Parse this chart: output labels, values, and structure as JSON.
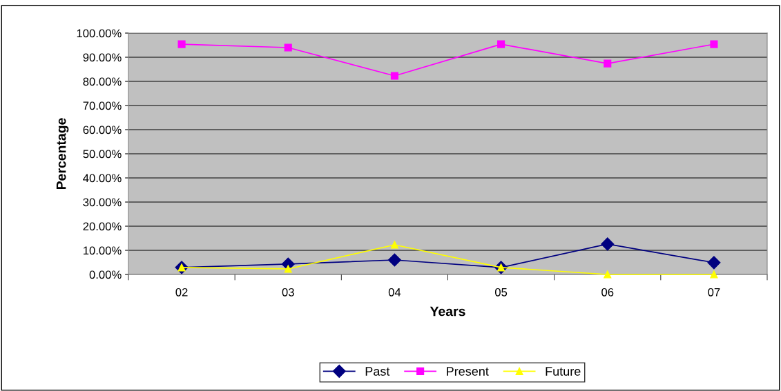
{
  "chart_data": {
    "type": "line",
    "xlabel": "Years",
    "ylabel": "Percentage",
    "categories": [
      "02",
      "03",
      "04",
      "05",
      "06",
      "07"
    ],
    "series": [
      {
        "name": "Past",
        "color": "#000080",
        "marker": "diamond",
        "values": [
          2.9,
          4.3,
          6.0,
          2.9,
          12.6,
          4.9
        ]
      },
      {
        "name": "Present",
        "color": "#ff00ff",
        "marker": "square",
        "values": [
          95.4,
          94.0,
          82.3,
          95.4,
          87.4,
          95.4
        ]
      },
      {
        "name": "Future",
        "color": "#ffff00",
        "marker": "triangle",
        "values": [
          2.9,
          2.3,
          12.3,
          2.9,
          0,
          0
        ]
      }
    ],
    "ylim": [
      0,
      100
    ],
    "yticks": [
      {
        "value": 0,
        "label": "0.00%"
      },
      {
        "value": 10,
        "label": "10.00%"
      },
      {
        "value": 20,
        "label": "20.00%"
      },
      {
        "value": 30,
        "label": "30.00%"
      },
      {
        "value": 40,
        "label": "40.00%"
      },
      {
        "value": 50,
        "label": "50.00%"
      },
      {
        "value": 60,
        "label": "60.00%"
      },
      {
        "value": 70,
        "label": "70.00%"
      },
      {
        "value": 80,
        "label": "80.00%"
      },
      {
        "value": 90,
        "label": "90.00%"
      },
      {
        "value": 100,
        "label": "100.00%"
      }
    ],
    "grid": "y",
    "legend": "bottom",
    "line_style": "solid"
  }
}
